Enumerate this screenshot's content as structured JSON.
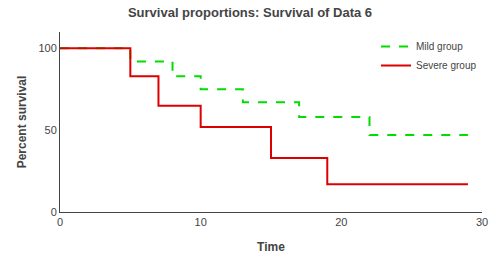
{
  "chart_data": {
    "type": "line",
    "title": "Survival proportions: Survival of Data 6",
    "xlabel": "Time",
    "ylabel": "Percent survival",
    "xlim": [
      0,
      30
    ],
    "ylim": [
      0,
      110
    ],
    "xticks": [
      0,
      10,
      20,
      30
    ],
    "yticks": [
      0,
      50,
      100
    ],
    "grid": false,
    "legend": "upper right",
    "series": [
      {
        "name": "Mild group",
        "color": "#00dd00",
        "line_style": "dashed",
        "x": [
          0,
          5,
          5,
          8,
          8,
          10,
          10,
          13,
          13,
          17,
          17,
          22,
          22,
          29
        ],
        "values": [
          100,
          100,
          92,
          92,
          83,
          83,
          75,
          75,
          67,
          67,
          58,
          58,
          47,
          47
        ]
      },
      {
        "name": "Severe group",
        "color": "#dd0000",
        "line_style": "solid",
        "x": [
          0,
          5,
          5,
          7,
          7,
          10,
          10,
          15,
          15,
          19,
          19,
          29
        ],
        "values": [
          100,
          100,
          83,
          83,
          65,
          65,
          52,
          52,
          33,
          33,
          17,
          17
        ]
      }
    ]
  }
}
